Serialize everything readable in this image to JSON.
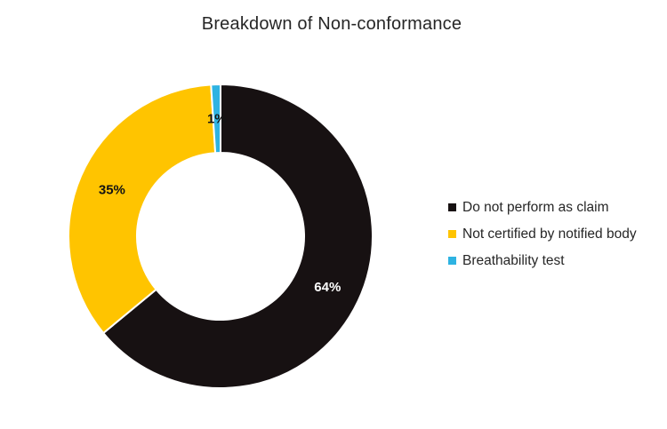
{
  "colors": {
    "background": "#ffffff",
    "title_text": "#262626",
    "legend_text": "#262626",
    "slice_border": "#ffffff"
  },
  "chart_data": {
    "type": "pie",
    "subtype": "donut",
    "title": "Breakdown of Non-conformance",
    "hole_ratio": 0.55,
    "start_angle_deg": 0,
    "direction": "clockwise",
    "legend_position": "right",
    "grid": false,
    "slices": [
      {
        "label": "Do not perform as claim",
        "value": 64,
        "data_label": "64%",
        "color": "#171112",
        "data_label_color": "#ffffff"
      },
      {
        "label": "Not certified by notified body",
        "value": 35,
        "data_label": "35%",
        "color": "#FFC400",
        "data_label_color": "#131313"
      },
      {
        "label": "Breathability test",
        "value": 1,
        "data_label": "1%",
        "color": "#2EB3E2",
        "data_label_color": "#131313"
      }
    ]
  }
}
